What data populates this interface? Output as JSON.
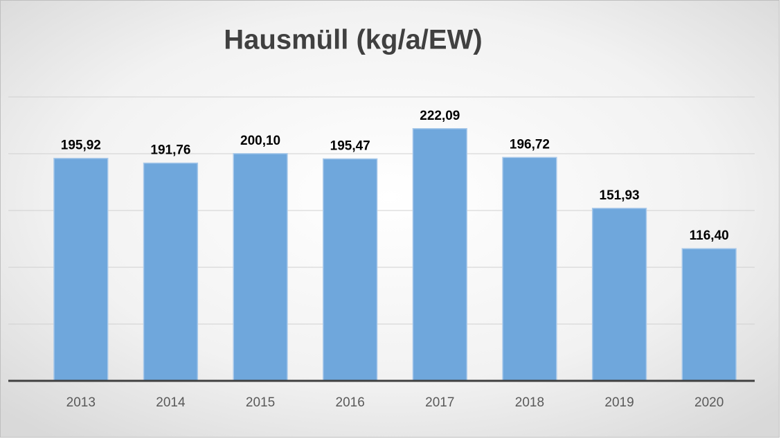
{
  "chart_data": {
    "type": "bar",
    "title": "Hausmüll (kg/a/EW)",
    "categories": [
      "2013",
      "2014",
      "2015",
      "2016",
      "2017",
      "2018",
      "2019",
      "2020"
    ],
    "values": [
      195.92,
      191.76,
      200.1,
      195.47,
      222.09,
      196.72,
      151.93,
      116.4
    ],
    "value_labels": [
      "195,92",
      "191,76",
      "200,10",
      "195,47",
      "222,09",
      "196,72",
      "151,93",
      "116,40"
    ],
    "color": "#6fa7dc",
    "ylim": [
      0,
      250
    ],
    "yticks": [
      0,
      50,
      100,
      150,
      200,
      250
    ],
    "grid": true
  }
}
